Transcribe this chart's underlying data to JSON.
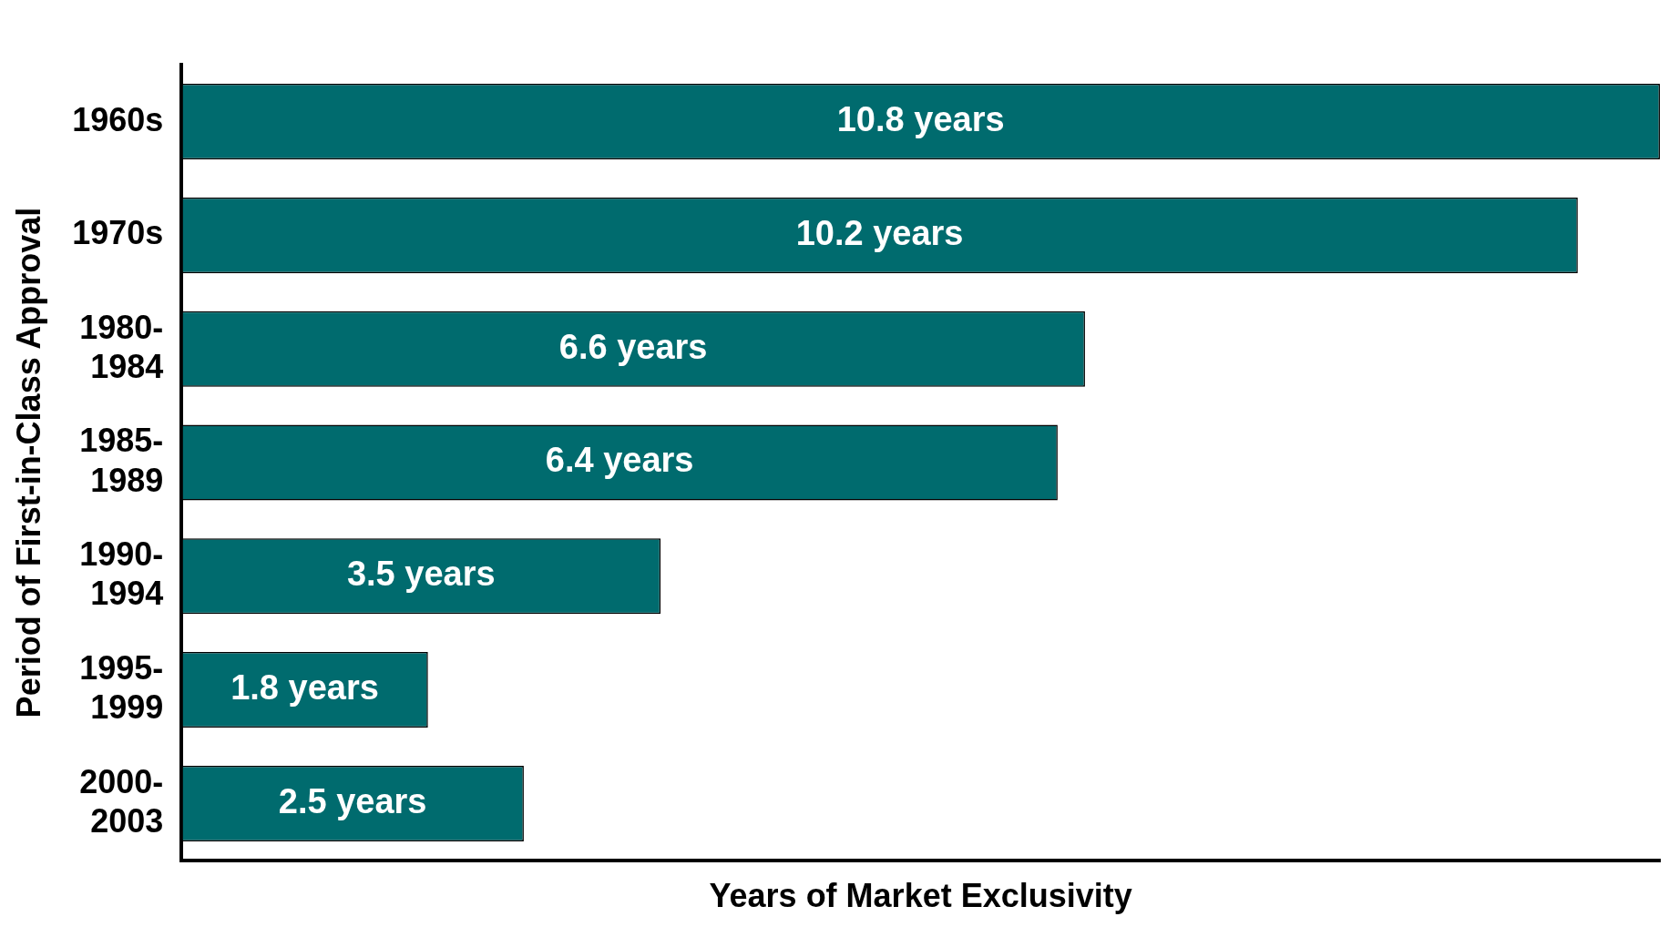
{
  "chart_data": {
    "type": "bar",
    "orientation": "horizontal",
    "xlabel": "Years of Market Exclusivity",
    "ylabel": "Period of First-in-Class Approval",
    "categories": [
      "1960s",
      "1970s",
      "1980-1984",
      "1985-1989",
      "1990-1994",
      "1995-1999",
      "2000-2003"
    ],
    "values": [
      10.8,
      10.2,
      6.6,
      6.4,
      3.5,
      1.8,
      2.5
    ],
    "value_labels": [
      "10.8 years",
      "10.2 years",
      "6.6 years",
      "6.4 years",
      "3.5 years",
      "1.8 years",
      "2.5 years"
    ],
    "color": "#006b6e",
    "xlim": [
      0,
      10.8
    ],
    "grid": false,
    "legend": false,
    "tick_labels": "y"
  }
}
